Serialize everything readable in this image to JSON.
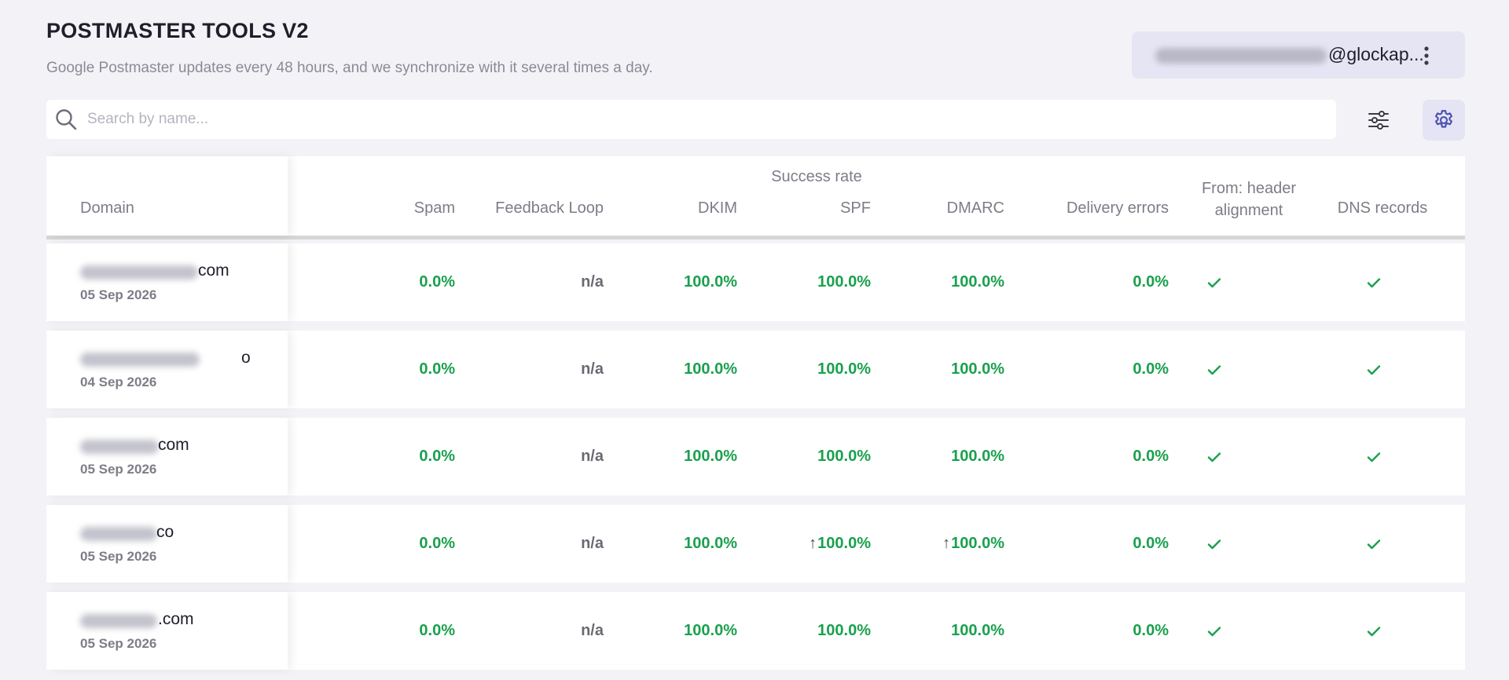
{
  "header": {
    "title": "POSTMASTER TOOLS V2",
    "subtitle": "Google Postmaster updates every 48 hours, and we synchronize with it several times a day."
  },
  "account": {
    "domain_visible": "@glockap..."
  },
  "search": {
    "placeholder": "Search by name..."
  },
  "icons": {
    "search": "search-icon",
    "filter": "sliders-icon",
    "settings": "gear-icon",
    "menu": "kebab-menu-icon",
    "check": "check-icon",
    "arrow": "arrow-up-icon"
  },
  "colors": {
    "success": "#1aa04e",
    "accent": "#4b4fb0",
    "na": "#6a6a74"
  },
  "table": {
    "group_header": "Success rate",
    "columns": {
      "domain": "Domain",
      "spam": "Spam",
      "feedback_loop": "Feedback Loop",
      "dkim": "DKIM",
      "spf": "SPF",
      "dmarc": "DMARC",
      "delivery_errors": "Delivery errors",
      "from_header_line1": "From: header",
      "from_header_line2": "alignment",
      "dns_records": "DNS records"
    },
    "rows": [
      {
        "domain_suffix": "com",
        "date": "05 Sep 2026",
        "spam": "0.0%",
        "feedback_loop": "n/a",
        "dkim": "100.0%",
        "spf": "100.0%",
        "spf_arrow": "",
        "dmarc": "100.0%",
        "dmarc_arrow": "",
        "delivery_errors": "0.0%",
        "from_header_ok": true,
        "dns_ok": true
      },
      {
        "domain_suffix": "o",
        "date": "04 Sep 2026",
        "spam": "0.0%",
        "feedback_loop": "n/a",
        "dkim": "100.0%",
        "spf": "100.0%",
        "spf_arrow": "",
        "dmarc": "100.0%",
        "dmarc_arrow": "",
        "delivery_errors": "0.0%",
        "from_header_ok": true,
        "dns_ok": true
      },
      {
        "domain_suffix": "com",
        "date": "05 Sep 2026",
        "spam": "0.0%",
        "feedback_loop": "n/a",
        "dkim": "100.0%",
        "spf": "100.0%",
        "spf_arrow": "",
        "dmarc": "100.0%",
        "dmarc_arrow": "",
        "delivery_errors": "0.0%",
        "from_header_ok": true,
        "dns_ok": true
      },
      {
        "domain_suffix": "co",
        "date": "05 Sep 2026",
        "spam": "0.0%",
        "feedback_loop": "n/a",
        "dkim": "100.0%",
        "spf": "100.0%",
        "spf_arrow": "↑",
        "dmarc": "100.0%",
        "dmarc_arrow": "↑",
        "delivery_errors": "0.0%",
        "from_header_ok": true,
        "dns_ok": true
      },
      {
        "domain_suffix": ".com",
        "date": "05 Sep 2026",
        "spam": "0.0%",
        "feedback_loop": "n/a",
        "dkim": "100.0%",
        "spf": "100.0%",
        "spf_arrow": "",
        "dmarc": "100.0%",
        "dmarc_arrow": "",
        "delivery_errors": "0.0%",
        "from_header_ok": true,
        "dns_ok": true
      }
    ]
  }
}
